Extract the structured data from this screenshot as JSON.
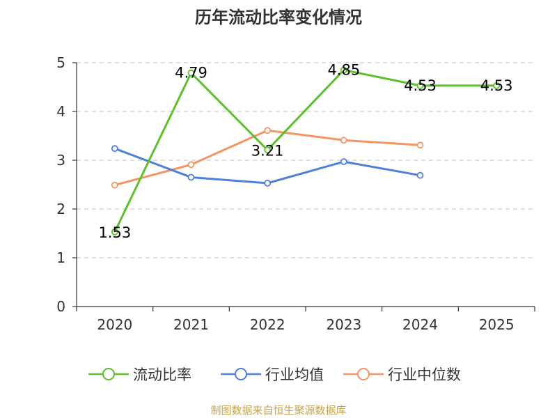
{
  "chart_data": {
    "type": "line",
    "title": "历年流动比率变化情况",
    "categories": [
      "2020",
      "2021",
      "2022",
      "2023",
      "2024",
      "2025"
    ],
    "ylim": [
      0,
      5
    ],
    "yticks": [
      "0",
      "1",
      "2",
      "3",
      "4",
      "5"
    ],
    "grid": true,
    "legend_position": "bottom",
    "series": [
      {
        "name": "流动比率",
        "color": "#5dbf2c",
        "values": [
          1.53,
          4.79,
          3.21,
          4.85,
          4.53,
          4.53
        ],
        "labels": [
          "1.53",
          "4.79",
          "3.21",
          "4.85",
          "4.53",
          "4.53"
        ]
      },
      {
        "name": "行业均值",
        "color": "#4f7fdc",
        "values": [
          3.24,
          2.65,
          2.53,
          2.97,
          2.69,
          null
        ]
      },
      {
        "name": "行业中位数",
        "color": "#f39563",
        "values": [
          2.49,
          2.91,
          3.61,
          3.41,
          3.31,
          null
        ]
      }
    ],
    "source": "制图数据来自恒生聚源数据库"
  }
}
